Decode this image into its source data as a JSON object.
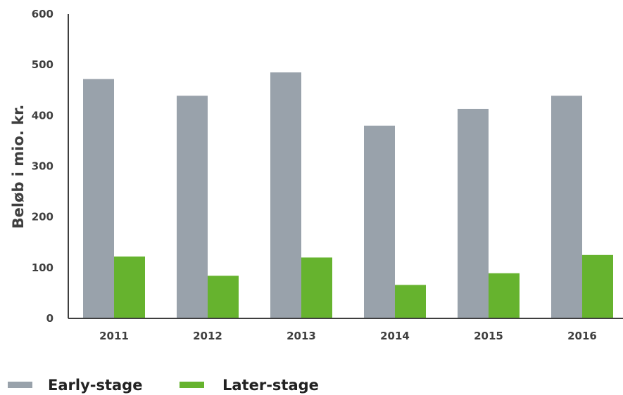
{
  "chart_data": {
    "type": "bar",
    "title": "",
    "xlabel": "",
    "ylabel": "Beløb i mio. kr.",
    "ylim": [
      0,
      600
    ],
    "yticks": [
      0,
      100,
      200,
      300,
      400,
      500,
      600
    ],
    "grid": false,
    "legend_position": "bottom-left",
    "categories": [
      "2011",
      "2012",
      "2013",
      "2014",
      "2015",
      "2016"
    ],
    "series": [
      {
        "name": "Early-stage",
        "color": "#99a2ab",
        "values": [
          472,
          439,
          485,
          380,
          413,
          439
        ]
      },
      {
        "name": "Later-stage",
        "color": "#66b32e",
        "values": [
          122,
          84,
          120,
          66,
          89,
          125
        ]
      }
    ]
  }
}
